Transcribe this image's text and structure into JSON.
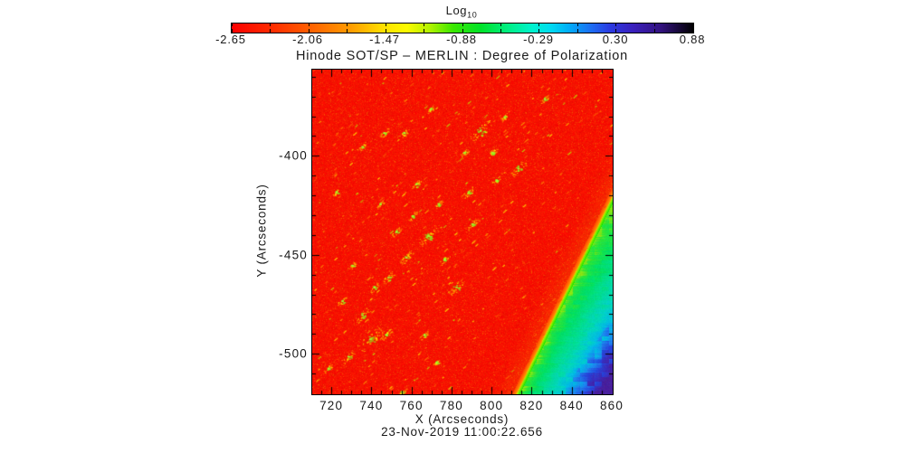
{
  "colorbar": {
    "title_main": "Log",
    "title_sub": "10",
    "tick_labels": [
      "-2.65",
      "-2.06",
      "-1.47",
      "-0.88",
      "-0.29",
      "0.30",
      "0.88"
    ],
    "gradient": [
      [
        0,
        "#fb0000"
      ],
      [
        0.09,
        "#ff2e00"
      ],
      [
        0.17,
        "#ff6000"
      ],
      [
        0.26,
        "#ff9e00"
      ],
      [
        0.33,
        "#ffe200"
      ],
      [
        0.38,
        "#fbfb00"
      ],
      [
        0.43,
        "#b0f300"
      ],
      [
        0.48,
        "#3ae800"
      ],
      [
        0.54,
        "#00e32a"
      ],
      [
        0.6,
        "#00ef86"
      ],
      [
        0.65,
        "#00f2cc"
      ],
      [
        0.69,
        "#00dcf0"
      ],
      [
        0.73,
        "#00aef8"
      ],
      [
        0.78,
        "#1e6cf2"
      ],
      [
        0.82,
        "#2b3ae0"
      ],
      [
        0.87,
        "#3a20bc"
      ],
      [
        0.93,
        "#33127e"
      ],
      [
        1,
        "#000000"
      ]
    ]
  },
  "chart_data": {
    "type": "heatmap",
    "title": "Hinode SOT/SP – MERLIN : Degree of Polarization",
    "x_label": "X (Arcseconds)",
    "y_label": "Y (Arcseconds)",
    "timestamp": "23-Nov-2019 11:00:22.656",
    "x_range": [
      710,
      860
    ],
    "y_range": [
      -520,
      -356
    ],
    "x_major_ticks": [
      720,
      740,
      760,
      780,
      800,
      820,
      840,
      860
    ],
    "x_minor_step": 5,
    "y_major_ticks": [
      -400,
      -450,
      -500
    ],
    "y_minor_step": 10,
    "colorbar_scale": {
      "label": "Log10",
      "min": -2.65,
      "max": 0.88,
      "tick_values": [
        -2.65,
        -2.06,
        -1.47,
        -0.88,
        -0.29,
        0.3,
        0.88
      ]
    },
    "grid": false,
    "legend": false,
    "disk": {
      "base_color": "#f81300",
      "typical_log10_value": -2.6,
      "note": "solar disk saturated red with diagonal chains of yellow-green polarization bright points"
    },
    "limb_line": [
      [
        860,
        -421
      ],
      [
        812.5,
        -520
      ]
    ],
    "offlimb_note": "off-limb wedge in lower-right: bright green limb edge fading through green, cyan, blue to dark violet noise blocks in the corner",
    "offlimb_colormap": [
      [
        0,
        "#8ae414"
      ],
      [
        0.05,
        "#2ce437"
      ],
      [
        0.16,
        "#00df62"
      ],
      [
        0.3,
        "#00dd92"
      ],
      [
        0.44,
        "#00d4c0"
      ],
      [
        0.56,
        "#00bce4"
      ],
      [
        0.67,
        "#1e82ee"
      ],
      [
        0.78,
        "#2547dd"
      ],
      [
        0.88,
        "#3a2cba"
      ],
      [
        1,
        "#481f9c"
      ]
    ],
    "bright_features": [
      [
        794,
        -387,
        5
      ],
      [
        813,
        -406,
        4
      ],
      [
        826,
        -371,
        2.2
      ],
      [
        768,
        -440,
        5
      ],
      [
        790,
        -434,
        3
      ],
      [
        782,
        -466,
        4
      ],
      [
        739,
        -492,
        6
      ],
      [
        757,
        -451,
        3.5
      ],
      [
        728,
        -501,
        3
      ],
      [
        755,
        -519,
        2.5
      ],
      [
        748,
        -461,
        3
      ],
      [
        735,
        -480,
        3.5
      ],
      [
        788,
        -418,
        3
      ],
      [
        800,
        -398,
        2.5
      ],
      [
        760,
        -430,
        2.5
      ],
      [
        772,
        -504,
        2
      ],
      [
        725,
        -473,
        2.5
      ],
      [
        806,
        -380,
        2
      ],
      [
        735,
        -395,
        2.2
      ],
      [
        722,
        -418,
        2
      ],
      [
        744,
        -424,
        2
      ],
      [
        766,
        -490,
        2.2
      ],
      [
        752,
        -438,
        2.5
      ],
      [
        776,
        -452,
        2.5
      ],
      [
        741,
        -466,
        2.5
      ],
      [
        730,
        -455,
        2
      ],
      [
        718,
        -507,
        2.2
      ],
      [
        802,
        -412,
        2
      ],
      [
        786,
        -398,
        2
      ],
      [
        747,
        -490,
        2.5
      ],
      [
        746,
        -388,
        2.5
      ],
      [
        769,
        -376,
        2
      ],
      [
        756,
        -388,
        2.2
      ],
      [
        762,
        -414,
        2.5
      ],
      [
        773,
        -424,
        2
      ]
    ],
    "texture": {
      "seed": 77,
      "mottle_count": 900,
      "speckle_count": 420,
      "tiny_dot_count": 1600,
      "speckle_colors": [
        "#ff7a00",
        "#ffe400",
        "#b9f000"
      ],
      "mottle_color": "#e01200"
    }
  }
}
